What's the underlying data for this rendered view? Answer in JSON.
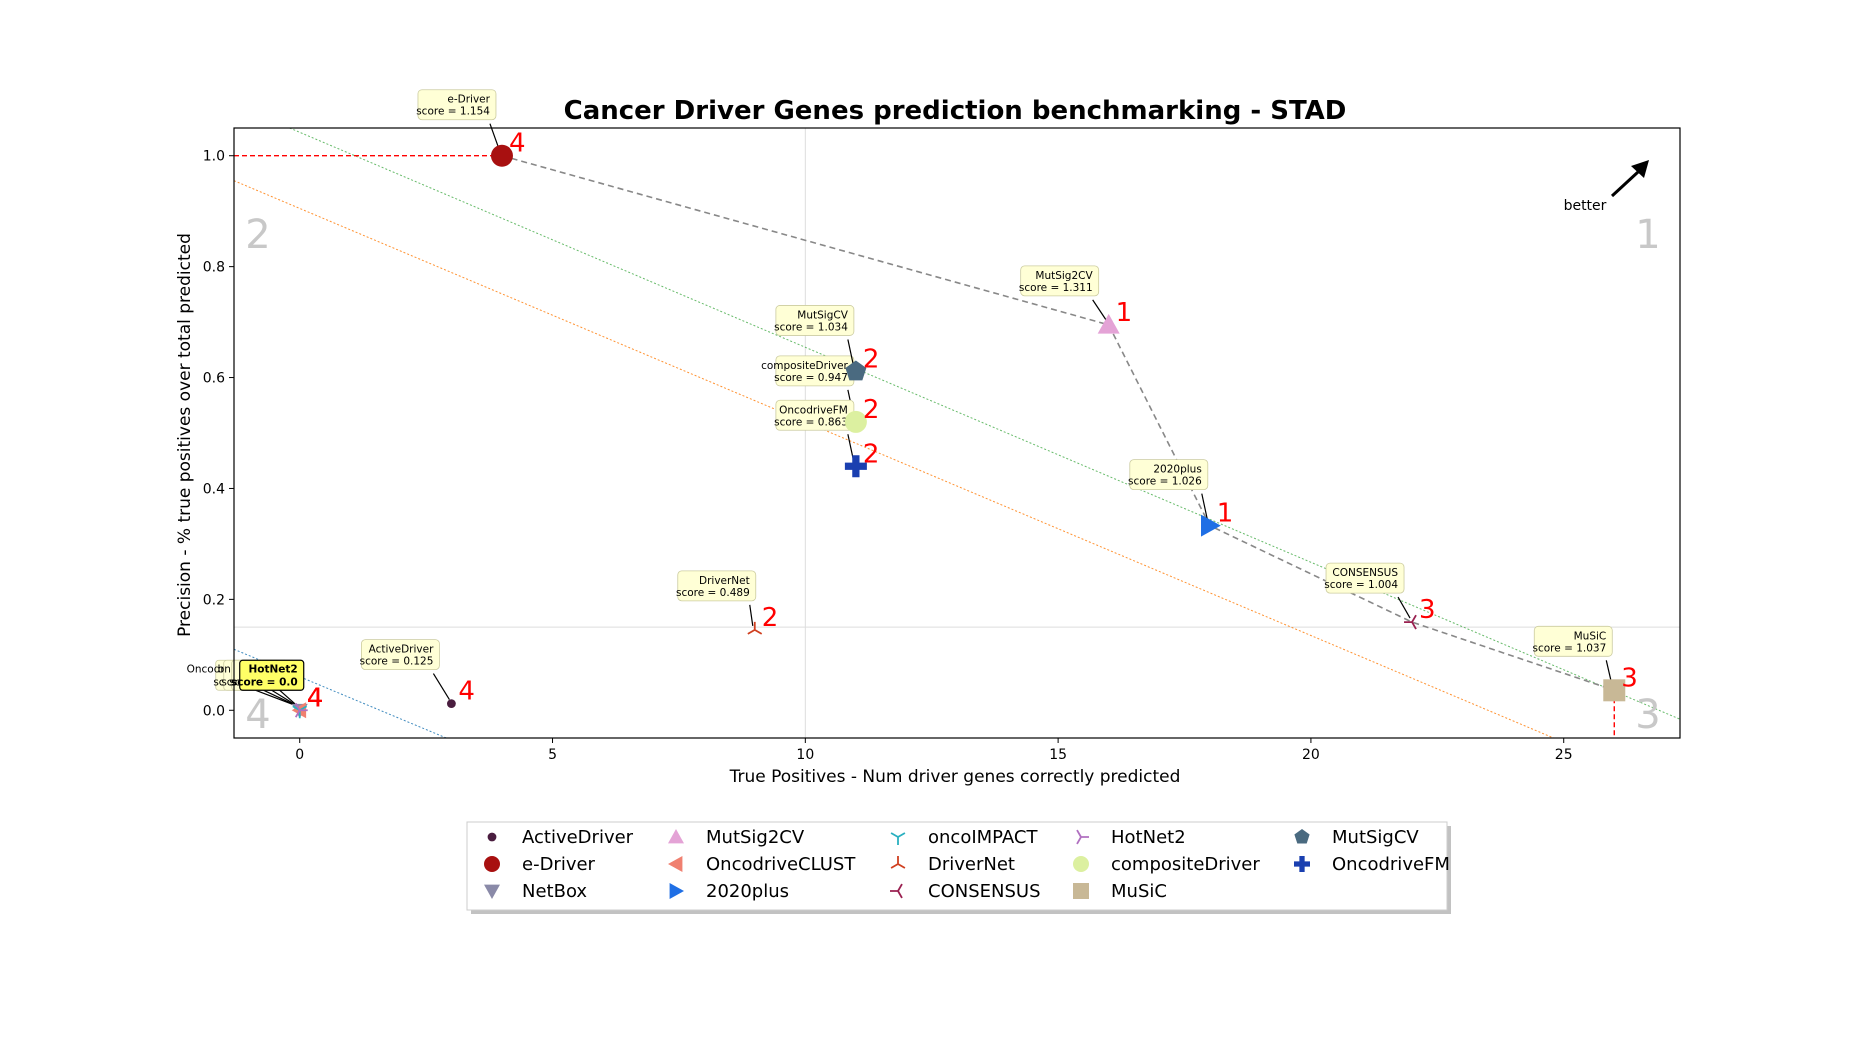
{
  "chart_data": {
    "type": "scatter",
    "title": "Cancer Driver Genes prediction benchmarking - STAD",
    "xlabel": "True Positives - Num driver genes correctly predicted",
    "ylabel": "Precision - % true positives over total predicted",
    "xlim": [
      -1.3,
      27.3
    ],
    "ylim": [
      -0.05,
      1.05
    ],
    "xticks": [
      0,
      5,
      10,
      15,
      20,
      25
    ],
    "yticks": [
      0.0,
      0.2,
      0.4,
      0.6,
      0.8,
      1.0
    ],
    "better_label": "better",
    "quadrant_labels": [
      "1",
      "2",
      "3",
      "4"
    ],
    "reference_lines": {
      "x": 10.0,
      "y": 0.15
    },
    "grid": false,
    "legend_position": "bottom-center",
    "series": [
      {
        "name": "ActiveDriver",
        "x": 3,
        "y": 0.012,
        "score": "score = 0.125",
        "rank": "4",
        "marker": "circle-small",
        "color": "#4a1d3f"
      },
      {
        "name": "e-Driver",
        "x": 4,
        "y": 1.0,
        "score": "score = 1.154",
        "rank": "4",
        "marker": "circle",
        "color": "#a81010"
      },
      {
        "name": "NetBox",
        "x": 0,
        "y": 0.0,
        "score": "score = 0.0",
        "rank": "4",
        "marker": "triangle-down",
        "color": "#8a8aa8"
      },
      {
        "name": "MutSig2CV",
        "x": 16,
        "y": 0.695,
        "score": "score = 1.311",
        "rank": "1",
        "marker": "triangle-up",
        "color": "#e4a3d6"
      },
      {
        "name": "OncodriveCLUST",
        "x": 0,
        "y": 0.0,
        "score": "score = 0.0",
        "rank": "4",
        "marker": "triangle-left",
        "color": "#f08070"
      },
      {
        "name": "2020plus",
        "x": 18,
        "y": 0.333,
        "score": "score = 1.026",
        "rank": "1",
        "marker": "triangle-right",
        "color": "#1f6fe5"
      },
      {
        "name": "oncoIMPACT",
        "x": 0,
        "y": 0.0,
        "score": "score = 0.0",
        "rank": "4",
        "marker": "tri-down",
        "color": "#2ab0c0"
      },
      {
        "name": "DriverNet",
        "x": 9,
        "y": 0.145,
        "score": "score = 0.489",
        "rank": "2",
        "marker": "tri-up",
        "color": "#d04020"
      },
      {
        "name": "CONSENSUS",
        "x": 22,
        "y": 0.159,
        "score": "score = 1.004",
        "rank": "3",
        "marker": "tri-left",
        "color": "#9a2050"
      },
      {
        "name": "HotNet2",
        "x": 0,
        "y": 0.0,
        "score": "score = 0.0",
        "rank": "4",
        "marker": "tri-right",
        "color": "#b070c0"
      },
      {
        "name": "compositeDriver",
        "x": 11,
        "y": 0.52,
        "score": "score = 0.947",
        "rank": "2",
        "marker": "circle",
        "color": "#dcf0a0"
      },
      {
        "name": "MuSiC",
        "x": 26,
        "y": 0.036,
        "score": "score = 1.037",
        "rank": "3",
        "marker": "square",
        "color": "#c8b896"
      },
      {
        "name": "MutSigCV",
        "x": 11,
        "y": 0.611,
        "score": "score = 1.034",
        "rank": "2",
        "marker": "pentagon",
        "color": "#4a6a80"
      },
      {
        "name": "OncodriveFM",
        "x": 11,
        "y": 0.44,
        "score": "score = 0.863",
        "rank": "2",
        "marker": "plus",
        "color": "#1a3fb0"
      }
    ]
  }
}
